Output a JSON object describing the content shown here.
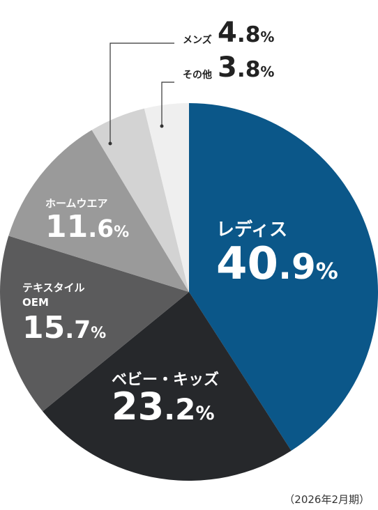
{
  "chart_data": {
    "type": "pie",
    "categories": [
      "レディス",
      "ベビー・キッズ",
      "テキスタイル\nOEM",
      "ホームウエア",
      "メンズ",
      "その他"
    ],
    "values": [
      40.9,
      23.2,
      15.7,
      11.6,
      4.8,
      3.8
    ],
    "value_labels": [
      "40.9%",
      "23.2%",
      "15.7%",
      "11.6%",
      "4.8%",
      "3.8%"
    ],
    "colors": [
      "#0b5789",
      "#26282b",
      "#5b5b5c",
      "#9a9a9a",
      "#d3d3d3",
      "#efefef"
    ],
    "note": "（2026年2月期）"
  }
}
